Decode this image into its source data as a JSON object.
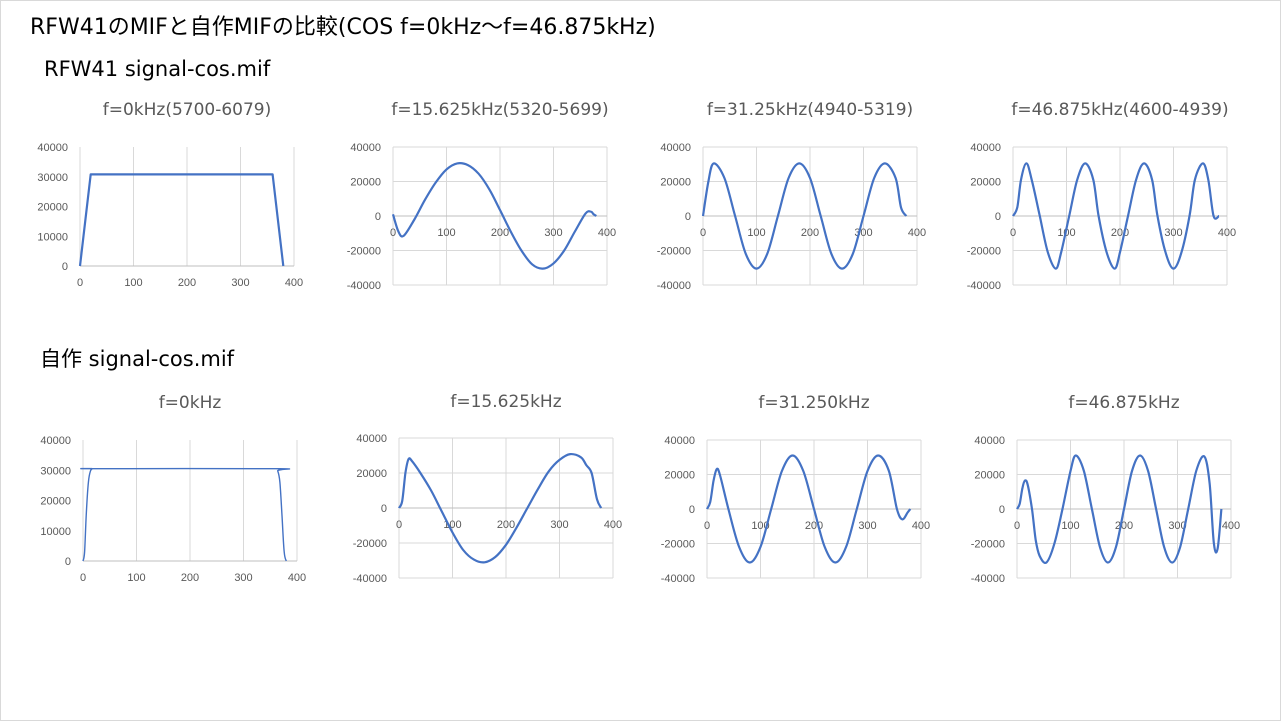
{
  "page": {
    "title": "RFW41のMIFと自作MIFの比較(COS f=0kHz〜f=46.875kHz)",
    "section1": "RFW41 signal-cos.mif",
    "section2": "自作 signal-cos.mif"
  },
  "colors": {
    "series": "#4472c4",
    "grid": "#d9d9d9",
    "text": "#595959"
  },
  "chart_data": [
    {
      "type": "line",
      "title": "f=0kHz(5700-6079)",
      "xlabel": "",
      "ylabel": "",
      "xlim": [
        0,
        400
      ],
      "ylim": [
        0,
        40000
      ],
      "xticks": [
        0,
        100,
        200,
        300,
        400
      ],
      "yticks": [
        0,
        10000,
        20000,
        30000,
        40000
      ],
      "grid": "vertical",
      "series": [
        {
          "x": [
            0,
            20,
            360,
            380
          ],
          "y": [
            0,
            30800,
            30800,
            0
          ]
        }
      ]
    },
    {
      "type": "line",
      "title": "f=15.625kHz(5320-5699)",
      "xlabel": "",
      "ylabel": "",
      "xlim": [
        0,
        400
      ],
      "ylim": [
        -40000,
        40000
      ],
      "xticks": [
        0,
        100,
        200,
        300,
        400
      ],
      "yticks": [
        -40000,
        -20000,
        0,
        20000,
        40000
      ],
      "grid": "both",
      "series": [
        {
          "x": [
            0,
            10,
            20,
            40,
            60,
            80,
            100,
            120,
            140,
            160,
            180,
            200,
            220,
            240,
            260,
            280,
            300,
            320,
            340,
            360,
            370,
            375,
            380
          ],
          "y": [
            1000,
            -9000,
            -11500,
            -2000,
            9500,
            19500,
            27000,
            30500,
            29500,
            24500,
            15500,
            3500,
            -9000,
            -20000,
            -28000,
            -30500,
            -27500,
            -20000,
            -9000,
            1500,
            2500,
            1000,
            0
          ]
        }
      ]
    },
    {
      "type": "line",
      "title": "f=31.25kHz(4940-5319)",
      "xlabel": "",
      "ylabel": "",
      "xlim": [
        0,
        400
      ],
      "ylim": [
        -40000,
        40000
      ],
      "xticks": [
        0,
        100,
        200,
        300,
        400
      ],
      "yticks": [
        -40000,
        -20000,
        0,
        20000,
        40000
      ],
      "grid": "both",
      "series": [
        {
          "x": [
            0,
            10,
            20,
            40,
            60,
            80,
            100,
            120,
            140,
            160,
            180,
            200,
            220,
            240,
            260,
            280,
            300,
            320,
            340,
            360,
            370,
            380
          ],
          "y": [
            0,
            20000,
            30500,
            22000,
            0,
            -22000,
            -30500,
            -22000,
            0,
            22000,
            30500,
            22000,
            0,
            -22000,
            -30500,
            -22000,
            0,
            22000,
            30500,
            22000,
            5000,
            0
          ]
        }
      ]
    },
    {
      "type": "line",
      "title": "f=46.875kHz(4600-4939)",
      "xlabel": "",
      "ylabel": "",
      "xlim": [
        0,
        400
      ],
      "ylim": [
        -40000,
        40000
      ],
      "xticks": [
        0,
        100,
        200,
        300,
        400
      ],
      "yticks": [
        -40000,
        -20000,
        0,
        20000,
        40000
      ],
      "grid": "both",
      "series": [
        {
          "x": [
            0,
            8,
            15,
            25,
            35,
            50,
            65,
            80,
            90,
            105,
            120,
            135,
            150,
            160,
            175,
            190,
            200,
            215,
            230,
            245,
            260,
            270,
            285,
            300,
            315,
            330,
            340,
            355,
            365,
            375,
            385
          ],
          "y": [
            0,
            5000,
            21000,
            30500,
            21000,
            0,
            -21000,
            -30500,
            -21000,
            0,
            21000,
            30500,
            21000,
            0,
            -21000,
            -30500,
            -21000,
            0,
            21000,
            30500,
            21000,
            0,
            -21000,
            -30500,
            -21000,
            0,
            21000,
            30500,
            21000,
            0,
            0
          ]
        }
      ]
    },
    {
      "type": "line",
      "title": "f=0kHz",
      "xlabel": "",
      "ylabel": "",
      "xlim": [
        0,
        400
      ],
      "ylim": [
        0,
        40000
      ],
      "xticks": [
        0,
        100,
        200,
        300,
        400
      ],
      "yticks": [
        0,
        10000,
        20000,
        30000,
        40000
      ],
      "grid": "vertical",
      "series": [
        {
          "x": [
            0,
            3,
            6,
            10,
            14,
            18,
            22,
            360,
            364,
            368,
            372,
            376,
            380
          ],
          "y": [
            0,
            3000,
            15000,
            26000,
            29800,
            30500,
            30500,
            30500,
            29800,
            26000,
            15000,
            3000,
            0
          ]
        }
      ]
    },
    {
      "type": "line",
      "title": "f=15.625kHz",
      "xlabel": "",
      "ylabel": "",
      "xlim": [
        0,
        400
      ],
      "ylim": [
        -40000,
        40000
      ],
      "xticks": [
        0,
        100,
        200,
        300,
        400
      ],
      "yticks": [
        -40000,
        -20000,
        0,
        20000,
        40000
      ],
      "grid": "both",
      "series": [
        {
          "x": [
            0,
            6,
            12,
            18,
            25,
            40,
            60,
            80,
            100,
            120,
            140,
            160,
            180,
            200,
            220,
            240,
            260,
            280,
            300,
            320,
            340,
            350,
            360,
            370,
            378
          ],
          "y": [
            0,
            4000,
            20000,
            28000,
            26500,
            20000,
            10000,
            -2000,
            -14000,
            -24000,
            -29500,
            -31000,
            -28000,
            -21000,
            -11000,
            0,
            11000,
            21000,
            27500,
            30800,
            29000,
            24500,
            20000,
            5000,
            0
          ]
        }
      ]
    },
    {
      "type": "line",
      "title": "f=31.250kHz",
      "xlabel": "",
      "ylabel": "",
      "xlim": [
        0,
        400
      ],
      "ylim": [
        -40000,
        40000
      ],
      "xticks": [
        0,
        100,
        200,
        300,
        400
      ],
      "yticks": [
        -40000,
        -20000,
        0,
        20000,
        40000
      ],
      "grid": "both",
      "series": [
        {
          "x": [
            0,
            6,
            12,
            18,
            24,
            40,
            60,
            80,
            100,
            120,
            140,
            160,
            180,
            200,
            220,
            240,
            260,
            280,
            300,
            320,
            340,
            355,
            365,
            375,
            380
          ],
          "y": [
            0,
            4000,
            16000,
            23000,
            20000,
            0,
            -22000,
            -31000,
            -22000,
            0,
            22000,
            31000,
            22000,
            0,
            -22000,
            -31000,
            -22000,
            0,
            22000,
            31000,
            22000,
            0,
            -6000,
            -2000,
            0
          ]
        }
      ]
    },
    {
      "type": "line",
      "title": "f=46.875kHz",
      "xlabel": "",
      "ylabel": "",
      "xlim": [
        0,
        400
      ],
      "ylim": [
        -40000,
        40000
      ],
      "xticks": [
        0,
        100,
        200,
        300,
        400
      ],
      "yticks": [
        -40000,
        -20000,
        0,
        20000,
        40000
      ],
      "grid": "both",
      "series": [
        {
          "x": [
            0,
            5,
            10,
            15,
            20,
            28,
            35,
            42,
            55,
            70,
            85,
            100,
            110,
            125,
            140,
            155,
            170,
            185,
            200,
            215,
            230,
            245,
            260,
            275,
            290,
            305,
            320,
            335,
            350,
            360,
            368,
            375,
            382
          ],
          "y": [
            0,
            3000,
            12000,
            16500,
            14000,
            0,
            -18000,
            -27000,
            -31000,
            -20000,
            0,
            22000,
            31000,
            22000,
            0,
            -22000,
            -31000,
            -22000,
            0,
            22000,
            31000,
            22000,
            0,
            -22000,
            -31000,
            -22000,
            0,
            22000,
            30500,
            15000,
            -20000,
            -23000,
            0
          ]
        }
      ]
    }
  ]
}
